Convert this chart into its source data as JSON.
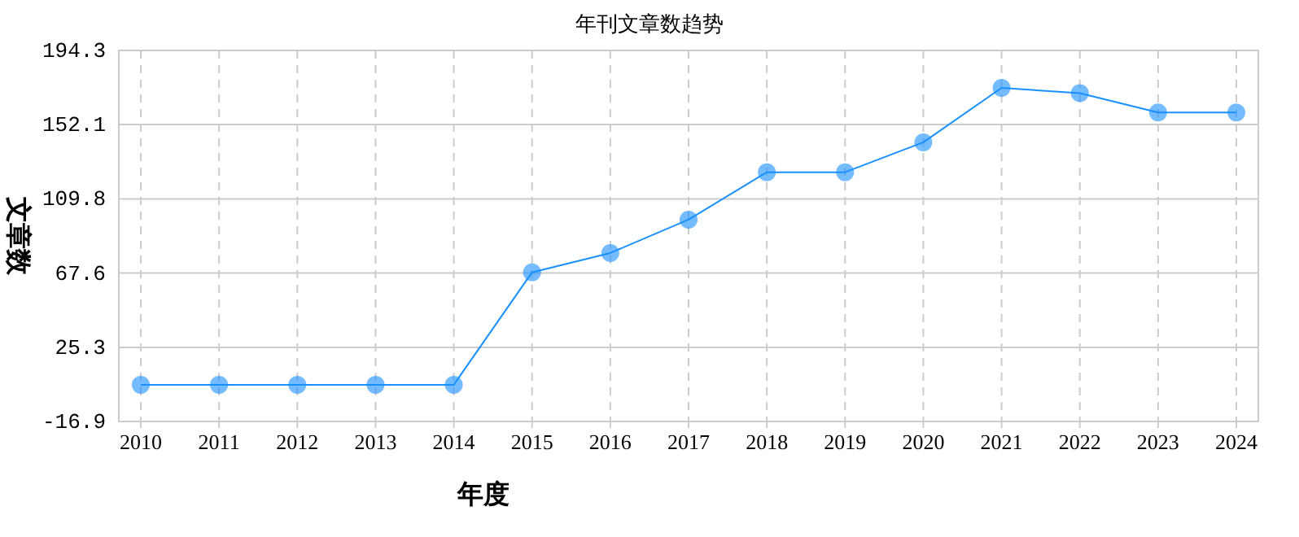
{
  "chart_data": {
    "type": "line",
    "title": "年刊文章数趋势",
    "xlabel": "年度",
    "ylabel": "文章数",
    "categories": [
      "2010",
      "2011",
      "2012",
      "2013",
      "2014",
      "2015",
      "2016",
      "2017",
      "2018",
      "2019",
      "2020",
      "2021",
      "2022",
      "2023",
      "2024"
    ],
    "series": [
      {
        "color": "#1890ff",
        "values": [
          4,
          4,
          4,
          4,
          4,
          68,
          79,
          98,
          125,
          125,
          142,
          173,
          170,
          159,
          159
        ]
      }
    ],
    "ylim": [
      -16.9,
      194.3
    ],
    "yticks": [
      -16.9,
      25.3,
      67.6,
      109.8,
      152.1,
      194.3
    ],
    "grid": true,
    "marker": "circle",
    "line_style": "solid"
  }
}
